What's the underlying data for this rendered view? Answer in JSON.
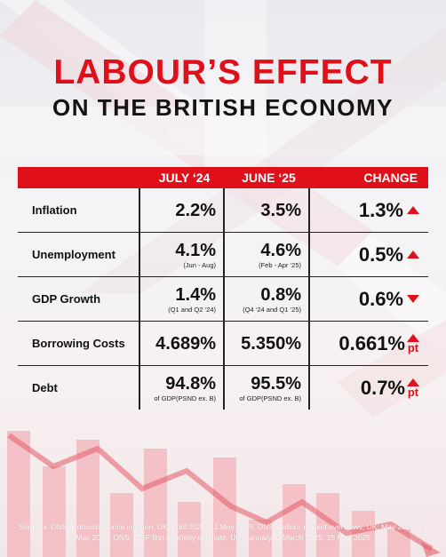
{
  "title": {
    "main": "LABOUR’S EFFECT",
    "sub": "ON THE BRITISH ECONOMY"
  },
  "table": {
    "headers": [
      "JULY ‘24",
      "JUNE ‘25",
      "CHANGE"
    ],
    "rows": [
      {
        "label": "Inflation",
        "july": "2.2%",
        "july_note": "",
        "june": "3.5%",
        "june_note": "",
        "change": "1.3%",
        "direction": "up",
        "unit": ""
      },
      {
        "label": "Unemployment",
        "july": "4.1%",
        "july_note": "(Jun - Aug)",
        "june": "4.6%",
        "june_note": "(Feb - Apr ‘25)",
        "change": "0.5%",
        "direction": "up",
        "unit": ""
      },
      {
        "label": "GDP Growth",
        "july": "1.4%",
        "july_note": "(Q1 and Q2 ‘24)",
        "june": "0.8%",
        "june_note": "(Q4 ‘24 and Q1 ‘25)",
        "change": "0.6%",
        "direction": "down",
        "unit": ""
      },
      {
        "label": "Borrowing Costs",
        "july": "4.689%",
        "july_note": "",
        "june": "5.350%",
        "june_note": "",
        "change": "0.661%",
        "direction": "up",
        "unit": "pt"
      },
      {
        "label": "Debt",
        "july": "94.8%",
        "july_note": "of GDP(PSND ex. B)",
        "june": "95.5%",
        "june_note": "of GDP(PSND ex. B)",
        "change": "0.7%",
        "direction": "up",
        "unit": "pt"
      }
    ]
  },
  "sources": "Sources: ONS, Consumer price inflation, UK: April 2025, 21 May 2025, ONS, Labour market overviews, UK: May 2025, 13 May 2025, ONS, GDP first quarterly estimate, UK: January to March 2025, 15 May 2025",
  "colors": {
    "accent": "#e0101b",
    "text": "#111111"
  }
}
